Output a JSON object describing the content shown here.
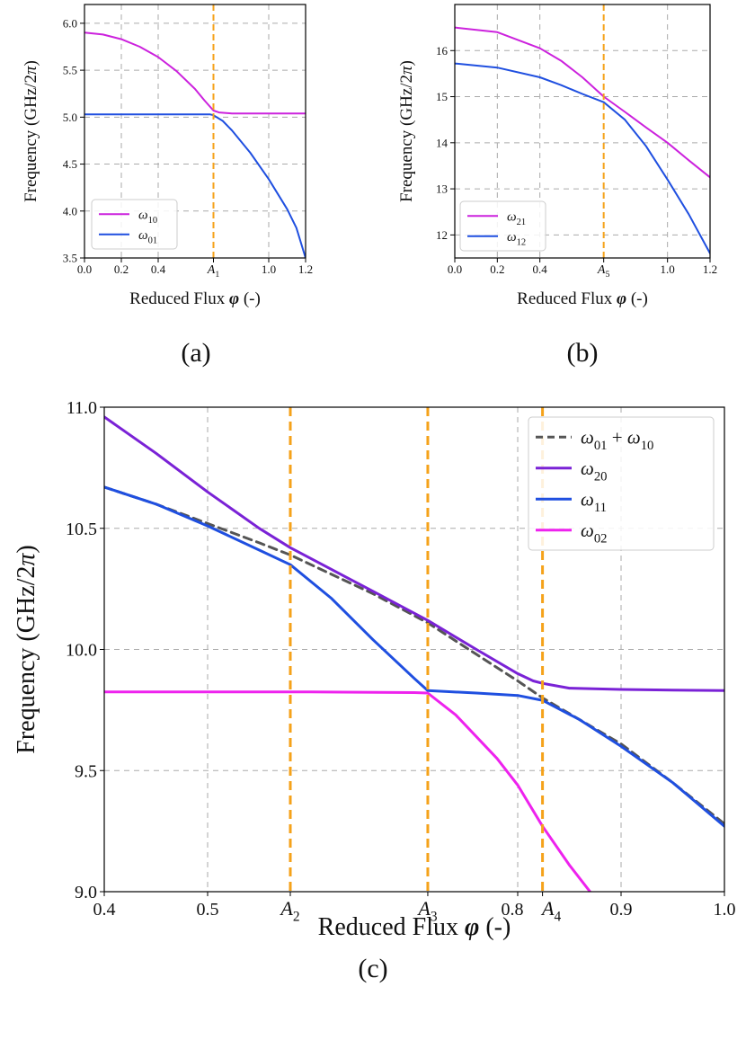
{
  "colors": {
    "magenta": "#cc22dd",
    "blue": "#1f4fe0",
    "purple": "#7a22d6",
    "pink": "#ee22ee",
    "orange": "#f5a21a",
    "sum_dash": "#555555",
    "grid": "#aaaaaa"
  },
  "chart_data": [
    {
      "panel_label": "(a)",
      "type": "line",
      "xlabel": "Reduced Flux φ (-)",
      "ylabel": "Frequency (GHz/2π)",
      "xlim": [
        0.0,
        1.2
      ],
      "ylim": [
        3.5,
        6.2
      ],
      "xticks": [
        {
          "value": 0.0,
          "label": "0.0"
        },
        {
          "value": 0.2,
          "label": "0.2"
        },
        {
          "value": 0.4,
          "label": "0.4"
        },
        {
          "value": 0.7,
          "label": "A1",
          "math": true
        },
        {
          "value": 1.0,
          "label": "1.0"
        },
        {
          "value": 1.2,
          "label": "1.2"
        }
      ],
      "yticks": [
        {
          "value": 3.5,
          "label": "3.5"
        },
        {
          "value": 4.0,
          "label": "4.0"
        },
        {
          "value": 4.5,
          "label": "4.5"
        },
        {
          "value": 5.0,
          "label": "5.0"
        },
        {
          "value": 5.5,
          "label": "5.5"
        },
        {
          "value": 6.0,
          "label": "6.0"
        }
      ],
      "grid": true,
      "legend_position": "lower-left",
      "vlines": [
        0.7
      ],
      "series": [
        {
          "name": "ω10",
          "color_key": "magenta",
          "style": "solid",
          "x": [
            0.0,
            0.1,
            0.2,
            0.3,
            0.4,
            0.5,
            0.6,
            0.65,
            0.7,
            0.73,
            0.8,
            1.0,
            1.2
          ],
          "y": [
            5.9,
            5.88,
            5.83,
            5.75,
            5.64,
            5.49,
            5.3,
            5.18,
            5.07,
            5.05,
            5.04,
            5.04,
            5.04
          ]
        },
        {
          "name": "ω01",
          "color_key": "blue",
          "style": "solid",
          "x": [
            0.0,
            0.2,
            0.4,
            0.6,
            0.68,
            0.7,
            0.75,
            0.8,
            0.9,
            1.0,
            1.1,
            1.15,
            1.2
          ],
          "y": [
            5.03,
            5.03,
            5.03,
            5.03,
            5.03,
            5.02,
            4.96,
            4.86,
            4.62,
            4.34,
            4.02,
            3.82,
            3.5
          ]
        }
      ]
    },
    {
      "panel_label": "(b)",
      "type": "line",
      "xlabel": "Reduced Flux φ (-)",
      "ylabel": "Frequency (GHz/2π)",
      "xlim": [
        0.0,
        1.2
      ],
      "ylim": [
        11.5,
        17.0
      ],
      "xticks": [
        {
          "value": 0.0,
          "label": "0.0"
        },
        {
          "value": 0.2,
          "label": "0.2"
        },
        {
          "value": 0.4,
          "label": "0.4"
        },
        {
          "value": 0.7,
          "label": "A5",
          "math": true
        },
        {
          "value": 1.0,
          "label": "1.0"
        },
        {
          "value": 1.2,
          "label": "1.2"
        }
      ],
      "yticks": [
        {
          "value": 12,
          "label": "12"
        },
        {
          "value": 13,
          "label": "13"
        },
        {
          "value": 14,
          "label": "14"
        },
        {
          "value": 15,
          "label": "15"
        },
        {
          "value": 16,
          "label": "16"
        }
      ],
      "grid": true,
      "legend_position": "lower-left",
      "vlines": [
        0.7
      ],
      "series": [
        {
          "name": "ω21",
          "color_key": "magenta",
          "style": "solid",
          "x": [
            0.0,
            0.2,
            0.4,
            0.5,
            0.6,
            0.7,
            0.8,
            0.9,
            1.0,
            1.1,
            1.2
          ],
          "y": [
            16.5,
            16.4,
            16.05,
            15.78,
            15.42,
            15.0,
            14.67,
            14.33,
            14.0,
            13.62,
            13.25
          ]
        },
        {
          "name": "ω12",
          "color_key": "blue",
          "style": "solid",
          "x": [
            0.0,
            0.2,
            0.4,
            0.5,
            0.6,
            0.7,
            0.8,
            0.9,
            1.0,
            1.1,
            1.2
          ],
          "y": [
            15.72,
            15.63,
            15.42,
            15.25,
            15.06,
            14.88,
            14.5,
            13.92,
            13.2,
            12.45,
            11.6
          ]
        }
      ]
    },
    {
      "panel_label": "(c)",
      "type": "line",
      "xlabel": "Reduced Flux φ (-)",
      "ylabel": "Frequency (GHz/2π)",
      "xlim": [
        0.4,
        1.0
      ],
      "ylim": [
        9.0,
        11.0
      ],
      "xticks": [
        {
          "value": 0.4,
          "label": "0.4"
        },
        {
          "value": 0.5,
          "label": "0.5"
        },
        {
          "value": 0.58,
          "label": "A2",
          "math": true
        },
        {
          "value": 0.713,
          "label": "A3",
          "math": true
        },
        {
          "value": 0.8,
          "label": "0.8"
        },
        {
          "value": 0.824,
          "label": "A4",
          "math": true
        },
        {
          "value": 0.9,
          "label": "0.9"
        },
        {
          "value": 1.0,
          "label": "1.0"
        }
      ],
      "yticks": [
        {
          "value": 9.0,
          "label": "9.0"
        },
        {
          "value": 9.5,
          "label": "9.5"
        },
        {
          "value": 10.0,
          "label": "10.0"
        },
        {
          "value": 10.5,
          "label": "10.5"
        },
        {
          "value": 11.0,
          "label": "11.0"
        }
      ],
      "grid": true,
      "legend_position": "top-right",
      "vlines": [
        0.58,
        0.713,
        0.824
      ],
      "series": [
        {
          "name": "ω01 + ω10",
          "color_key": "sum_dash",
          "style": "dashed",
          "x": [
            0.4,
            0.45,
            0.5,
            0.55,
            0.58,
            0.62,
            0.66,
            0.713,
            0.76,
            0.8,
            0.824,
            0.86,
            0.9,
            0.95,
            1.0
          ],
          "y": [
            10.67,
            10.6,
            10.52,
            10.44,
            10.39,
            10.31,
            10.23,
            10.11,
            9.98,
            9.87,
            9.8,
            9.71,
            9.61,
            9.45,
            9.28
          ]
        },
        {
          "name": "ω20",
          "color_key": "purple",
          "style": "solid",
          "x": [
            0.4,
            0.45,
            0.5,
            0.55,
            0.58,
            0.62,
            0.66,
            0.713,
            0.76,
            0.8,
            0.815,
            0.824,
            0.85,
            0.9,
            0.95,
            1.0
          ],
          "y": [
            10.96,
            10.81,
            10.65,
            10.5,
            10.42,
            10.33,
            10.24,
            10.12,
            10.0,
            9.9,
            9.87,
            9.86,
            9.84,
            9.835,
            9.832,
            9.83
          ]
        },
        {
          "name": "ω11",
          "color_key": "blue",
          "style": "solid",
          "x": [
            0.4,
            0.45,
            0.5,
            0.55,
            0.58,
            0.62,
            0.66,
            0.7,
            0.713,
            0.76,
            0.8,
            0.824,
            0.86,
            0.9,
            0.95,
            1.0
          ],
          "y": [
            10.67,
            10.6,
            10.51,
            10.41,
            10.35,
            10.21,
            10.04,
            9.88,
            9.83,
            9.82,
            9.81,
            9.79,
            9.71,
            9.6,
            9.45,
            9.27
          ]
        },
        {
          "name": "ω02",
          "color_key": "pink",
          "style": "solid",
          "x": [
            0.4,
            0.5,
            0.6,
            0.7,
            0.713,
            0.74,
            0.78,
            0.8,
            0.824,
            0.85,
            0.87
          ],
          "y": [
            9.825,
            9.825,
            9.825,
            9.822,
            9.82,
            9.73,
            9.55,
            9.44,
            9.27,
            9.11,
            9.0
          ]
        }
      ]
    }
  ]
}
